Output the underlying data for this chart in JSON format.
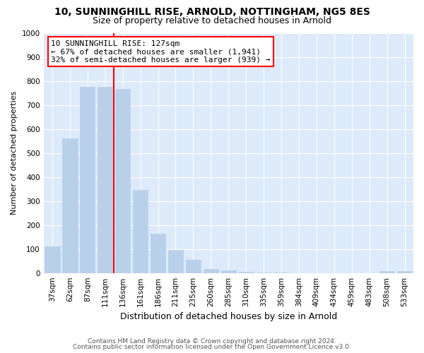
{
  "title1": "10, SUNNINGHILL RISE, ARNOLD, NOTTINGHAM, NG5 8ES",
  "title2": "Size of property relative to detached houses in Arnold",
  "xlabel": "Distribution of detached houses by size in Arnold",
  "ylabel": "Number of detached properties",
  "categories": [
    "37sqm",
    "62sqm",
    "87sqm",
    "111sqm",
    "136sqm",
    "161sqm",
    "186sqm",
    "211sqm",
    "235sqm",
    "260sqm",
    "285sqm",
    "310sqm",
    "335sqm",
    "359sqm",
    "384sqm",
    "409sqm",
    "434sqm",
    "459sqm",
    "483sqm",
    "508sqm",
    "533sqm"
  ],
  "values": [
    110,
    560,
    775,
    775,
    765,
    345,
    163,
    97,
    54,
    18,
    11,
    5,
    2,
    1,
    0,
    0,
    0,
    0,
    0,
    9,
    8
  ],
  "bar_color": "#b8d0ea",
  "bar_edgecolor": "#b8d0ea",
  "annotation_text": "10 SUNNINGHILL RISE: 127sqm\n← 67% of detached houses are smaller (1,941)\n32% of semi-detached houses are larger (939) →",
  "footer1": "Contains HM Land Registry data © Crown copyright and database right 2024.",
  "footer2": "Contains public sector information licensed under the Open Government Licence v3.0.",
  "ylim": [
    0,
    1000
  ],
  "yticks": [
    0,
    100,
    200,
    300,
    400,
    500,
    600,
    700,
    800,
    900,
    1000
  ],
  "bg_color": "#ddeafa",
  "fig_bg_color": "#ffffff",
  "grid_color": "#ffffff",
  "title1_fontsize": 10,
  "title2_fontsize": 9,
  "xlabel_fontsize": 9,
  "ylabel_fontsize": 8,
  "tick_fontsize": 7.5,
  "footer_fontsize": 6.5,
  "annot_fontsize": 8,
  "line_x_index": 3.5
}
